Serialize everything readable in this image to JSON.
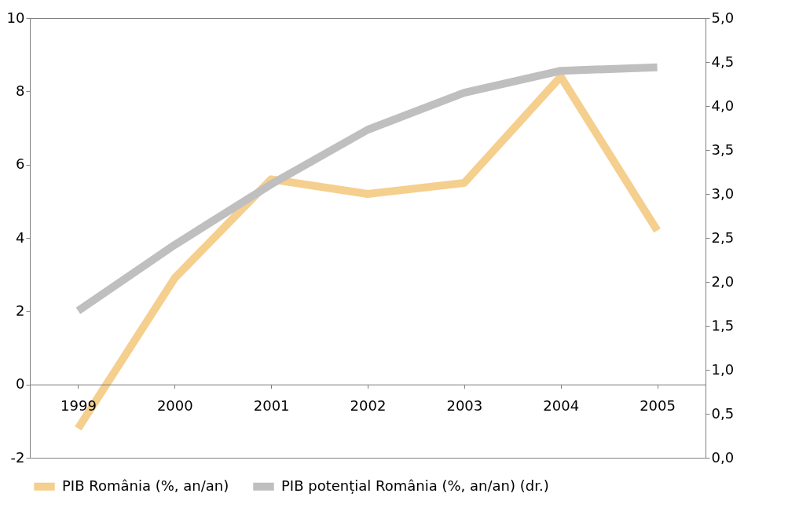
{
  "chart_data": {
    "type": "line",
    "categories": [
      "1999",
      "2000",
      "2001",
      "2002",
      "2003",
      "2004",
      "2005"
    ],
    "series": [
      {
        "name": "PIB România (%, an/an)",
        "color": "#f5cf8e",
        "values": [
          -1.2,
          2.9,
          5.6,
          5.2,
          5.5,
          8.4,
          4.2
        ]
      },
      {
        "name": "PIB potențial România (%, an/an) (dr.)",
        "color": "#bfbfbf",
        "axis": "y2",
        "values": [
          1.67,
          2.42,
          3.11,
          3.73,
          4.15,
          4.4,
          4.44
        ]
      }
    ],
    "ylim": [
      -2,
      10
    ],
    "yticks": [
      -2,
      0,
      2,
      4,
      6,
      8,
      10
    ],
    "y2lim": [
      0,
      5
    ],
    "y2ticks": [
      {
        "value": 0,
        "label": "0,0"
      },
      {
        "value": 0.5,
        "label": "0,5"
      },
      {
        "value": 1,
        "label": "1,0"
      },
      {
        "value": 1.5,
        "label": "1,5"
      },
      {
        "value": 2,
        "label": "2,0"
      },
      {
        "value": 2.5,
        "label": "2,5"
      },
      {
        "value": 3,
        "label": "3,0"
      },
      {
        "value": 3.5,
        "label": "3,5"
      },
      {
        "value": 4,
        "label": "4,0"
      },
      {
        "value": 4.5,
        "label": "4,5"
      },
      {
        "value": 5,
        "label": "5,0"
      }
    ],
    "grid": false,
    "legend": "bottom",
    "marker": "none",
    "line_style": "solid"
  }
}
